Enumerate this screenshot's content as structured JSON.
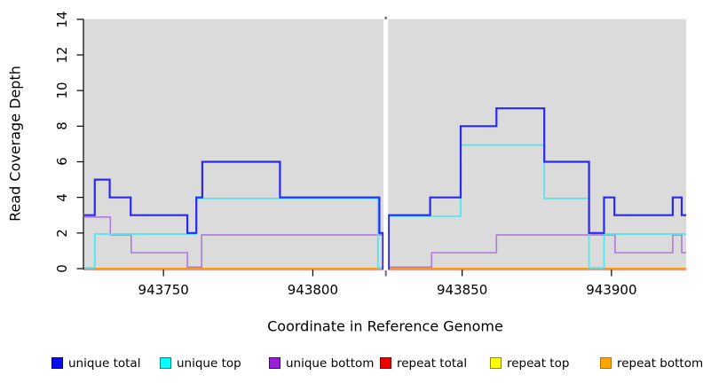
{
  "figure": {
    "xlabel": "Coordinate in Reference Genome",
    "ylabel": "Read Coverage Depth"
  },
  "chart_data": {
    "type": "line",
    "subtype": "step-coverage",
    "title": "",
    "xlabel": "Coordinate in Reference Genome",
    "ylabel": "Read Coverage Depth",
    "xlim": [
      943723.5,
      943925
    ],
    "ylim": [
      0,
      14
    ],
    "x_ticks": [
      943750,
      943800,
      943850,
      943900
    ],
    "y_ticks": [
      0,
      2,
      4,
      6,
      8,
      10,
      12,
      14
    ],
    "grid": false,
    "panel_bg": "#dbdbdb",
    "gap_region": {
      "x_start": 943823.7,
      "x_end": 943825.2,
      "color": "#ffffff",
      "marker_color": "#6e6e6e"
    },
    "legend_position": "bottom",
    "series": [
      {
        "name": "repeat total",
        "line_color": "#ee2222",
        "legend_fill": "#ee0000",
        "legend_border": "#8b0000",
        "points": [
          [
            943723.5,
            0
          ],
          [
            943925,
            0
          ]
        ]
      },
      {
        "name": "repeat top",
        "line_color": "#f5f500",
        "legend_fill": "#ffff00",
        "legend_border": "#8b8b00",
        "points": [
          [
            943723.5,
            0
          ],
          [
            943925,
            0
          ]
        ]
      },
      {
        "name": "repeat bottom",
        "line_color": "#ff9d00",
        "legend_fill": "#ffa500",
        "legend_border": "#b86e00",
        "points": [
          [
            943723.5,
            0
          ],
          [
            943925,
            0
          ]
        ]
      },
      {
        "name": "unique bottom",
        "line_color": "#b079dc",
        "legend_fill": "#9820d8",
        "legend_border": "#4b0082",
        "points": [
          [
            943723.5,
            3
          ],
          [
            943732.2,
            2
          ],
          [
            943739.2,
            1
          ],
          [
            943758,
            0
          ],
          [
            943762.8,
            2
          ],
          [
            943823.5,
            0
          ],
          [
            943839.8,
            1
          ],
          [
            943861.5,
            2
          ],
          [
            943901.2,
            1
          ],
          [
            943920.5,
            2
          ],
          [
            943923.5,
            1
          ],
          [
            943925,
            1
          ]
        ]
      },
      {
        "name": "unique top",
        "line_color": "#4fe9f1",
        "legend_fill": "#00ffff",
        "legend_border": "#008b8b",
        "points": [
          [
            943723.5,
            0
          ],
          [
            943727,
            2
          ],
          [
            943761,
            4
          ],
          [
            943821.8,
            0
          ],
          [
            943825.4,
            3
          ],
          [
            943849.5,
            7
          ],
          [
            943877.5,
            4
          ],
          [
            943892.5,
            0
          ],
          [
            943897.5,
            2
          ],
          [
            943925,
            2
          ]
        ]
      },
      {
        "name": "unique total",
        "line_color": "#2a2aee",
        "legend_fill": "#0b0bef",
        "legend_border": "#00008b",
        "points": [
          [
            943723.5,
            3
          ],
          [
            943727,
            5
          ],
          [
            943732,
            4
          ],
          [
            943739,
            3
          ],
          [
            943758,
            2
          ],
          [
            943761,
            4
          ],
          [
            943763,
            6
          ],
          [
            943789,
            4
          ],
          [
            943822.3,
            2
          ],
          [
            943823.5,
            0
          ],
          [
            943825.4,
            3
          ],
          [
            943839.3,
            4
          ],
          [
            943849.5,
            8
          ],
          [
            943861.5,
            9
          ],
          [
            943877.5,
            6
          ],
          [
            943892.5,
            2
          ],
          [
            943897.5,
            4
          ],
          [
            943901,
            3
          ],
          [
            943920.5,
            4
          ],
          [
            943923.5,
            3
          ],
          [
            943925,
            3
          ]
        ]
      }
    ],
    "legend_order": [
      "unique total",
      "unique top",
      "unique bottom",
      "repeat total",
      "repeat top",
      "repeat bottom"
    ]
  }
}
